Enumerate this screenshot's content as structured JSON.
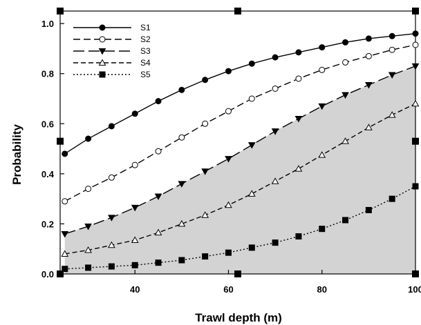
{
  "chart_data": {
    "type": "line",
    "xlabel": "Trawl depth (m)",
    "ylabel": "Probability",
    "xlim": [
      24,
      100
    ],
    "ylim": [
      0,
      1.05
    ],
    "xticks": [
      40,
      60,
      80,
      100
    ],
    "xtick_labels": [
      "40",
      "60",
      "80",
      "100"
    ],
    "yticks": [
      0,
      0.2,
      0.4,
      0.6,
      0.8,
      1.0
    ],
    "ytick_labels": [
      "0.0",
      "0.2",
      "0.4",
      "0.6",
      "0.8",
      "1.0"
    ],
    "grid": false,
    "legend_position": "top-left",
    "shaded_region": {
      "between": [
        "S3",
        "axis"
      ],
      "color": "#d3d3d3"
    },
    "series": [
      {
        "name": "S1",
        "line": "solid",
        "marker": "filled-circle",
        "x": [
          25,
          30,
          35,
          40,
          45,
          50,
          55,
          60,
          65,
          70,
          75,
          80,
          85,
          90,
          95,
          100
        ],
        "y": [
          0.48,
          0.54,
          0.59,
          0.64,
          0.69,
          0.735,
          0.775,
          0.81,
          0.84,
          0.865,
          0.885,
          0.905,
          0.925,
          0.94,
          0.95,
          0.96
        ]
      },
      {
        "name": "S2",
        "line": "dash",
        "marker": "open-circle",
        "x": [
          25,
          30,
          35,
          40,
          45,
          50,
          55,
          60,
          65,
          70,
          75,
          80,
          85,
          90,
          95,
          100
        ],
        "y": [
          0.29,
          0.34,
          0.385,
          0.435,
          0.49,
          0.545,
          0.6,
          0.65,
          0.7,
          0.74,
          0.78,
          0.815,
          0.845,
          0.87,
          0.895,
          0.915
        ]
      },
      {
        "name": "S3",
        "line": "longdash",
        "marker": "filled-triangle-down",
        "x": [
          25,
          30,
          35,
          40,
          45,
          50,
          55,
          60,
          65,
          70,
          75,
          80,
          85,
          90,
          95,
          100
        ],
        "y": [
          0.16,
          0.19,
          0.225,
          0.265,
          0.31,
          0.36,
          0.41,
          0.46,
          0.515,
          0.57,
          0.62,
          0.67,
          0.715,
          0.755,
          0.795,
          0.83
        ]
      },
      {
        "name": "S4",
        "line": "shortdash",
        "marker": "open-triangle-up",
        "x": [
          25,
          30,
          35,
          40,
          45,
          50,
          55,
          60,
          65,
          70,
          75,
          80,
          85,
          90,
          95,
          100
        ],
        "y": [
          0.08,
          0.095,
          0.115,
          0.135,
          0.165,
          0.2,
          0.235,
          0.275,
          0.32,
          0.37,
          0.42,
          0.475,
          0.53,
          0.585,
          0.635,
          0.68
        ]
      },
      {
        "name": "S5",
        "line": "dot",
        "marker": "filled-square",
        "x": [
          25,
          30,
          35,
          40,
          45,
          50,
          55,
          60,
          65,
          70,
          75,
          80,
          85,
          90,
          95,
          100
        ],
        "y": [
          0.02,
          0.025,
          0.03,
          0.035,
          0.045,
          0.055,
          0.07,
          0.085,
          0.105,
          0.125,
          0.15,
          0.18,
          0.215,
          0.255,
          0.3,
          0.35
        ]
      }
    ]
  }
}
